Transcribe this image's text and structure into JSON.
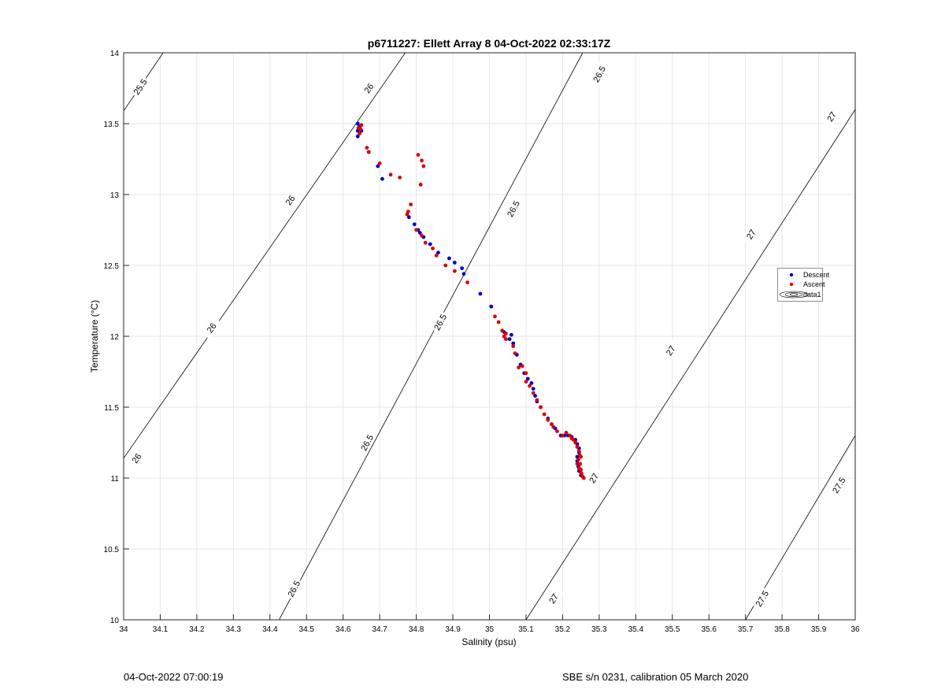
{
  "chart_data": {
    "type": "scatter",
    "title": "p6711227: Ellett Array 8 04-Oct-2022 02:33:17Z",
    "xlabel": "Salinity (psu)",
    "ylabel": "Temperature (°C)",
    "xlim": [
      34,
      36
    ],
    "ylim": [
      10,
      14
    ],
    "xticks": [
      "34",
      "34.1",
      "34.2",
      "34.3",
      "34.4",
      "34.5",
      "34.6",
      "34.7",
      "34.8",
      "34.9",
      "35",
      "35.1",
      "35.2",
      "35.3",
      "35.4",
      "35.5",
      "35.6",
      "35.7",
      "35.8",
      "35.9",
      "36"
    ],
    "yticks": [
      "10",
      "10.5",
      "11",
      "11.5",
      "12",
      "12.5",
      "13",
      "13.5",
      "14"
    ],
    "grid": true,
    "legend_placement": "right",
    "legend": [
      {
        "label": "Descent",
        "color": "#0000cc",
        "marker": "dot"
      },
      {
        "label": "Ascent",
        "color": "#dd0000",
        "marker": "dot"
      },
      {
        "label": "data1",
        "color": "#000000",
        "marker": "contour"
      }
    ],
    "contours": [
      {
        "level": "25.5",
        "start": [
          34.0,
          13.59
        ],
        "end": [
          34.108,
          14.0
        ],
        "labels": [
          [
            34.045,
            13.76
          ]
        ]
      },
      {
        "level": "26",
        "start": [
          34.0,
          11.14
        ],
        "end": [
          34.77,
          14.0
        ],
        "labels": [
          [
            34.035,
            11.14
          ],
          [
            34.24,
            12.06
          ],
          [
            34.455,
            12.96
          ],
          [
            34.67,
            13.75
          ]
        ]
      },
      {
        "level": "26.5",
        "start": [
          34.425,
          10.0
        ],
        "end": [
          35.255,
          14.0
        ],
        "labels": [
          [
            34.465,
            10.22
          ],
          [
            34.665,
            11.25
          ],
          [
            34.865,
            12.1
          ],
          [
            35.065,
            12.9
          ],
          [
            35.3,
            13.85
          ]
        ]
      },
      {
        "level": "27",
        "start": [
          35.1,
          10.0
        ],
        "end": [
          36.0,
          13.6
        ],
        "labels": [
          [
            35.175,
            10.15
          ],
          [
            35.285,
            11.0
          ],
          [
            35.495,
            11.9
          ],
          [
            35.715,
            12.72
          ],
          [
            35.935,
            13.55
          ]
        ]
      },
      {
        "level": "27.5",
        "start": [
          35.7,
          10.0
        ],
        "end": [
          36.0,
          11.3
        ],
        "labels": [
          [
            35.745,
            10.15
          ],
          [
            35.955,
            10.95
          ]
        ]
      }
    ],
    "series": [
      {
        "name": "Descent",
        "color": "#0000cc",
        "points": [
          [
            34.64,
            13.41
          ],
          [
            34.64,
            13.45
          ],
          [
            34.645,
            13.48
          ],
          [
            34.64,
            13.5
          ],
          [
            34.65,
            13.45
          ],
          [
            34.67,
            13.3
          ],
          [
            34.695,
            13.2
          ],
          [
            34.707,
            13.11
          ],
          [
            34.78,
            12.84
          ],
          [
            34.795,
            12.79
          ],
          [
            34.805,
            12.75
          ],
          [
            34.81,
            12.73
          ],
          [
            34.82,
            12.7
          ],
          [
            34.838,
            12.65
          ],
          [
            34.86,
            12.59
          ],
          [
            34.89,
            12.55
          ],
          [
            34.905,
            12.52
          ],
          [
            34.925,
            12.48
          ],
          [
            34.93,
            12.44
          ],
          [
            34.975,
            12.3
          ],
          [
            35.005,
            12.21
          ],
          [
            35.04,
            12.03
          ],
          [
            35.055,
            11.98
          ],
          [
            35.06,
            12.01
          ],
          [
            35.065,
            11.95
          ],
          [
            35.075,
            11.87
          ],
          [
            35.085,
            11.8
          ],
          [
            35.095,
            11.74
          ],
          [
            35.105,
            11.7
          ],
          [
            35.115,
            11.67
          ],
          [
            35.12,
            11.63
          ],
          [
            35.125,
            11.58
          ],
          [
            35.13,
            11.54
          ],
          [
            35.14,
            11.5
          ],
          [
            35.16,
            11.42
          ],
          [
            35.17,
            11.38
          ],
          [
            35.18,
            11.35
          ],
          [
            35.195,
            11.3
          ],
          [
            35.205,
            11.3
          ],
          [
            35.215,
            11.3
          ],
          [
            35.225,
            11.29
          ],
          [
            35.235,
            11.27
          ],
          [
            35.24,
            11.24
          ],
          [
            35.245,
            11.21
          ],
          [
            35.245,
            11.18
          ],
          [
            35.24,
            11.15
          ],
          [
            35.24,
            11.12
          ],
          [
            35.243,
            11.08
          ],
          [
            35.245,
            11.05
          ],
          [
            35.25,
            11.02
          ]
        ]
      },
      {
        "name": "Ascent",
        "color": "#dd0000",
        "points": [
          [
            34.645,
            13.43
          ],
          [
            34.648,
            13.46
          ],
          [
            34.65,
            13.49
          ],
          [
            34.642,
            13.47
          ],
          [
            34.665,
            13.33
          ],
          [
            34.67,
            13.3
          ],
          [
            34.7,
            13.22
          ],
          [
            34.73,
            13.14
          ],
          [
            34.755,
            13.12
          ],
          [
            34.805,
            13.28
          ],
          [
            34.815,
            13.24
          ],
          [
            34.82,
            13.2
          ],
          [
            34.812,
            13.07
          ],
          [
            34.785,
            12.93
          ],
          [
            34.778,
            12.88
          ],
          [
            34.775,
            12.86
          ],
          [
            34.8,
            12.75
          ],
          [
            34.815,
            12.71
          ],
          [
            34.825,
            12.66
          ],
          [
            34.845,
            12.62
          ],
          [
            34.855,
            12.57
          ],
          [
            34.88,
            12.5
          ],
          [
            34.905,
            12.46
          ],
          [
            34.94,
            12.38
          ],
          [
            35.015,
            12.14
          ],
          [
            35.025,
            12.1
          ],
          [
            35.035,
            12.04
          ],
          [
            35.045,
            12.02
          ],
          [
            35.04,
            12.0
          ],
          [
            35.045,
            11.98
          ],
          [
            35.065,
            11.93
          ],
          [
            35.07,
            11.88
          ],
          [
            35.08,
            11.78
          ],
          [
            35.09,
            11.79
          ],
          [
            35.1,
            11.74
          ],
          [
            35.1,
            11.68
          ],
          [
            35.11,
            11.65
          ],
          [
            35.12,
            11.6
          ],
          [
            35.13,
            11.55
          ],
          [
            35.14,
            11.5
          ],
          [
            35.15,
            11.45
          ],
          [
            35.16,
            11.41
          ],
          [
            35.17,
            11.38
          ],
          [
            35.175,
            11.36
          ],
          [
            35.185,
            11.33
          ],
          [
            35.2,
            11.3
          ],
          [
            35.21,
            11.32
          ],
          [
            35.22,
            11.3
          ],
          [
            35.225,
            11.28
          ],
          [
            35.23,
            11.27
          ],
          [
            35.235,
            11.25
          ],
          [
            35.24,
            11.22
          ],
          [
            35.245,
            11.19
          ],
          [
            35.25,
            11.15
          ],
          [
            35.248,
            11.1
          ],
          [
            35.25,
            11.06
          ],
          [
            35.252,
            11.03
          ],
          [
            35.255,
            11.01
          ],
          [
            35.258,
            11.0
          ],
          [
            35.25,
            11.04
          ],
          [
            35.245,
            11.07
          ],
          [
            35.24,
            11.1
          ],
          [
            35.243,
            11.13
          ],
          [
            35.247,
            11.16
          ]
        ]
      }
    ]
  },
  "footer": {
    "left": "04-Oct-2022 07:00:19",
    "right": "SBE s/n 0231, calibration 05 March 2020"
  }
}
